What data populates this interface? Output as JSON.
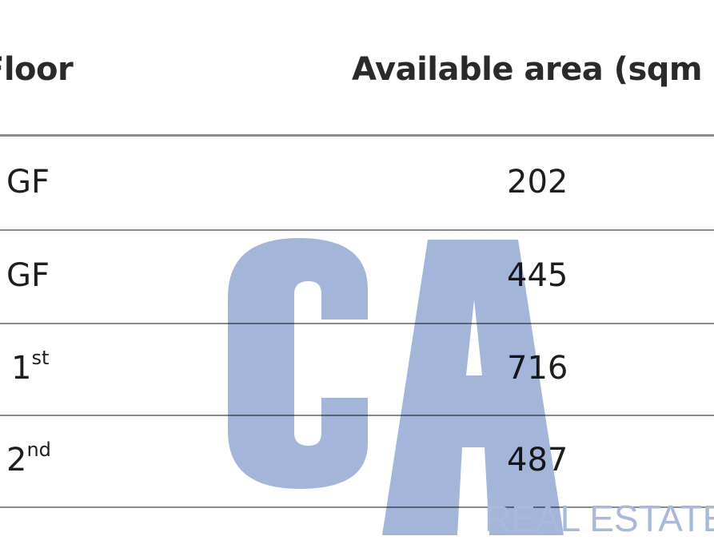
{
  "table": {
    "headers": [
      "Floor",
      "Available area (sqm"
    ],
    "rows": [
      {
        "floor": "GF",
        "floor_sup": "",
        "area": "202"
      },
      {
        "floor": "GF",
        "floor_sup": "",
        "area": "445"
      },
      {
        "floor": "1",
        "floor_sup": "st",
        "area": "716"
      },
      {
        "floor": "2",
        "floor_sup": "nd",
        "area": "487"
      }
    ]
  },
  "watermark": {
    "logo": "CA",
    "tagline": "REAL ESTATE",
    "color": "#a3b5d9"
  }
}
